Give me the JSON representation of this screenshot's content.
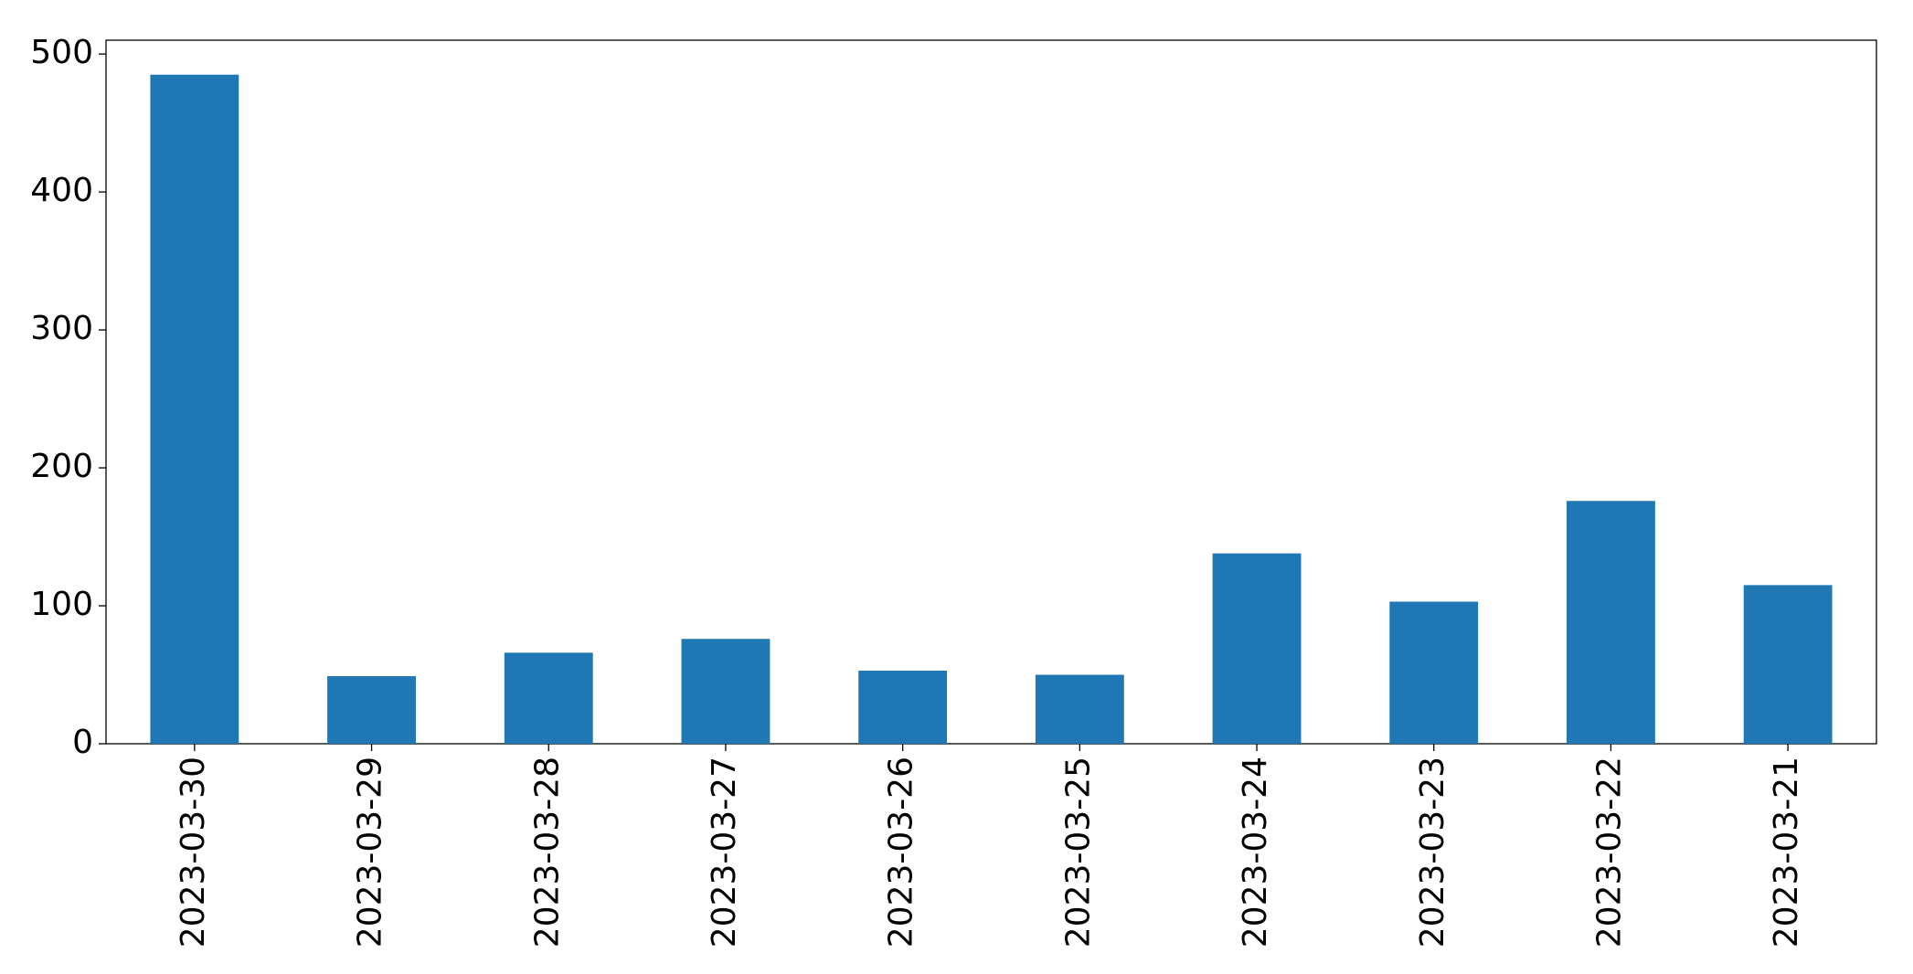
{
  "chart_data": {
    "type": "bar",
    "categories": [
      "2023-03-30",
      "2023-03-29",
      "2023-03-28",
      "2023-03-27",
      "2023-03-26",
      "2023-03-25",
      "2023-03-24",
      "2023-03-23",
      "2023-03-22",
      "2023-03-21"
    ],
    "values": [
      485,
      49,
      66,
      76,
      53,
      50,
      138,
      103,
      176,
      115
    ],
    "color": "#1f77b4",
    "ylim": [
      0,
      510
    ],
    "yticks": [
      0,
      100,
      200,
      300,
      400,
      500
    ],
    "grid": false
  }
}
